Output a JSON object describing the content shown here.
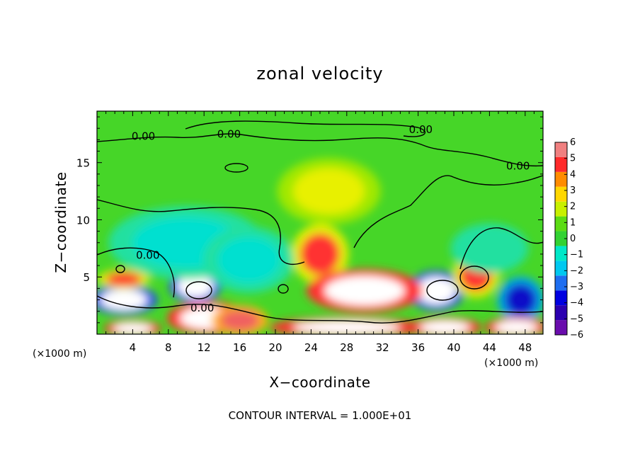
{
  "chart_data": {
    "type": "heatmap",
    "title": "zonal velocity",
    "xlabel": "X−coordinate",
    "ylabel": "Z−coordinate",
    "x_unit_left": "(×1000 m)",
    "x_unit_right": "(×1000 m)",
    "note": "CONTOUR INTERVAL = 1.000E+01",
    "xlim": [
      0,
      50
    ],
    "ylim": [
      0,
      19.5
    ],
    "xticks": [
      {
        "value": 4,
        "label": "4"
      },
      {
        "value": 8,
        "label": "8"
      },
      {
        "value": 12,
        "label": "12"
      },
      {
        "value": 16,
        "label": "16"
      },
      {
        "value": 20,
        "label": "20"
      },
      {
        "value": 24,
        "label": "24"
      },
      {
        "value": 28,
        "label": "28"
      },
      {
        "value": 32,
        "label": "32"
      },
      {
        "value": 36,
        "label": "36"
      },
      {
        "value": 40,
        "label": "40"
      },
      {
        "value": 44,
        "label": "44"
      },
      {
        "value": 48,
        "label": "48"
      }
    ],
    "yticks": [
      {
        "value": 5,
        "label": "5"
      },
      {
        "value": 10,
        "label": "10"
      },
      {
        "value": 15,
        "label": "15"
      }
    ],
    "colorbar": {
      "min": -6,
      "max": 6,
      "ticks": [
        "6",
        "5",
        "4",
        "3",
        "2",
        "1",
        "0",
        "−1",
        "−2",
        "−3",
        "−4",
        "−5",
        "−6"
      ],
      "colors": [
        "#6a0dad",
        "#2b00b0",
        "#0000e0",
        "#1e6ef0",
        "#00c8f0",
        "#00e8c8",
        "#32d232",
        "#5cdc14",
        "#c8f000",
        "#ffd700",
        "#ff8c00",
        "#ff2a2a",
        "#f08080"
      ]
    },
    "contour_labels": [
      {
        "x": 5.2,
        "y": 17.3,
        "text": "0.00"
      },
      {
        "x": 14.8,
        "y": 17.5,
        "text": "0.00"
      },
      {
        "x": 36.3,
        "y": 17.9,
        "text": "0.00"
      },
      {
        "x": 47.2,
        "y": 14.7,
        "text": "0.00"
      },
      {
        "x": 5.7,
        "y": 6.9,
        "text": "0.00"
      },
      {
        "x": 11.8,
        "y": 2.3,
        "text": "0.00"
      }
    ],
    "features": [
      {
        "x": 3.0,
        "y": 3.0,
        "value": -5.5,
        "rx": 2.6,
        "ry": 0.9
      },
      {
        "x": 11.0,
        "y": 4.2,
        "value": -5.5,
        "rx": 2.0,
        "ry": 1.0
      },
      {
        "x": 38.0,
        "y": 3.8,
        "value": -5.5,
        "rx": 2.2,
        "ry": 1.2
      },
      {
        "x": 47.5,
        "y": 3.0,
        "value": -4.5,
        "rx": 1.8,
        "ry": 1.4
      },
      {
        "x": 3.0,
        "y": 4.8,
        "value": 4.0,
        "rx": 2.0,
        "ry": 0.6
      },
      {
        "x": 12.5,
        "y": 1.4,
        "value": 6.0,
        "rx": 3.2,
        "ry": 1.0
      },
      {
        "x": 16.0,
        "y": 1.2,
        "value": 5.0,
        "rx": 2.2,
        "ry": 0.9
      },
      {
        "x": 25.0,
        "y": 7.0,
        "value": 4.5,
        "rx": 2.2,
        "ry": 1.8
      },
      {
        "x": 30.0,
        "y": 3.8,
        "value": 6.0,
        "rx": 4.5,
        "ry": 1.3
      },
      {
        "x": 42.5,
        "y": 5.2,
        "value": 4.0,
        "rx": 1.8,
        "ry": 1.4
      },
      {
        "x": 28.0,
        "y": 0.6,
        "value": 6.0,
        "rx": 6.0,
        "ry": 0.6
      },
      {
        "x": 39.0,
        "y": 0.6,
        "value": 6.0,
        "rx": 2.8,
        "ry": 0.6
      },
      {
        "x": 47.0,
        "y": 0.6,
        "value": 6.0,
        "rx": 2.4,
        "ry": 0.6
      },
      {
        "x": 4.0,
        "y": 0.5,
        "value": 6.0,
        "rx": 2.2,
        "ry": 0.5
      },
      {
        "x": 10.0,
        "y": 8.0,
        "value": -2.0,
        "rx": 6.0,
        "ry": 2.2
      },
      {
        "x": 17.0,
        "y": 6.5,
        "value": -1.5,
        "rx": 3.5,
        "ry": 2.0
      },
      {
        "x": 26.0,
        "y": 12.5,
        "value": 2.0,
        "rx": 4.0,
        "ry": 2.0
      },
      {
        "x": 44.0,
        "y": 7.5,
        "value": -1.0,
        "rx": 3.0,
        "ry": 1.5
      }
    ]
  }
}
